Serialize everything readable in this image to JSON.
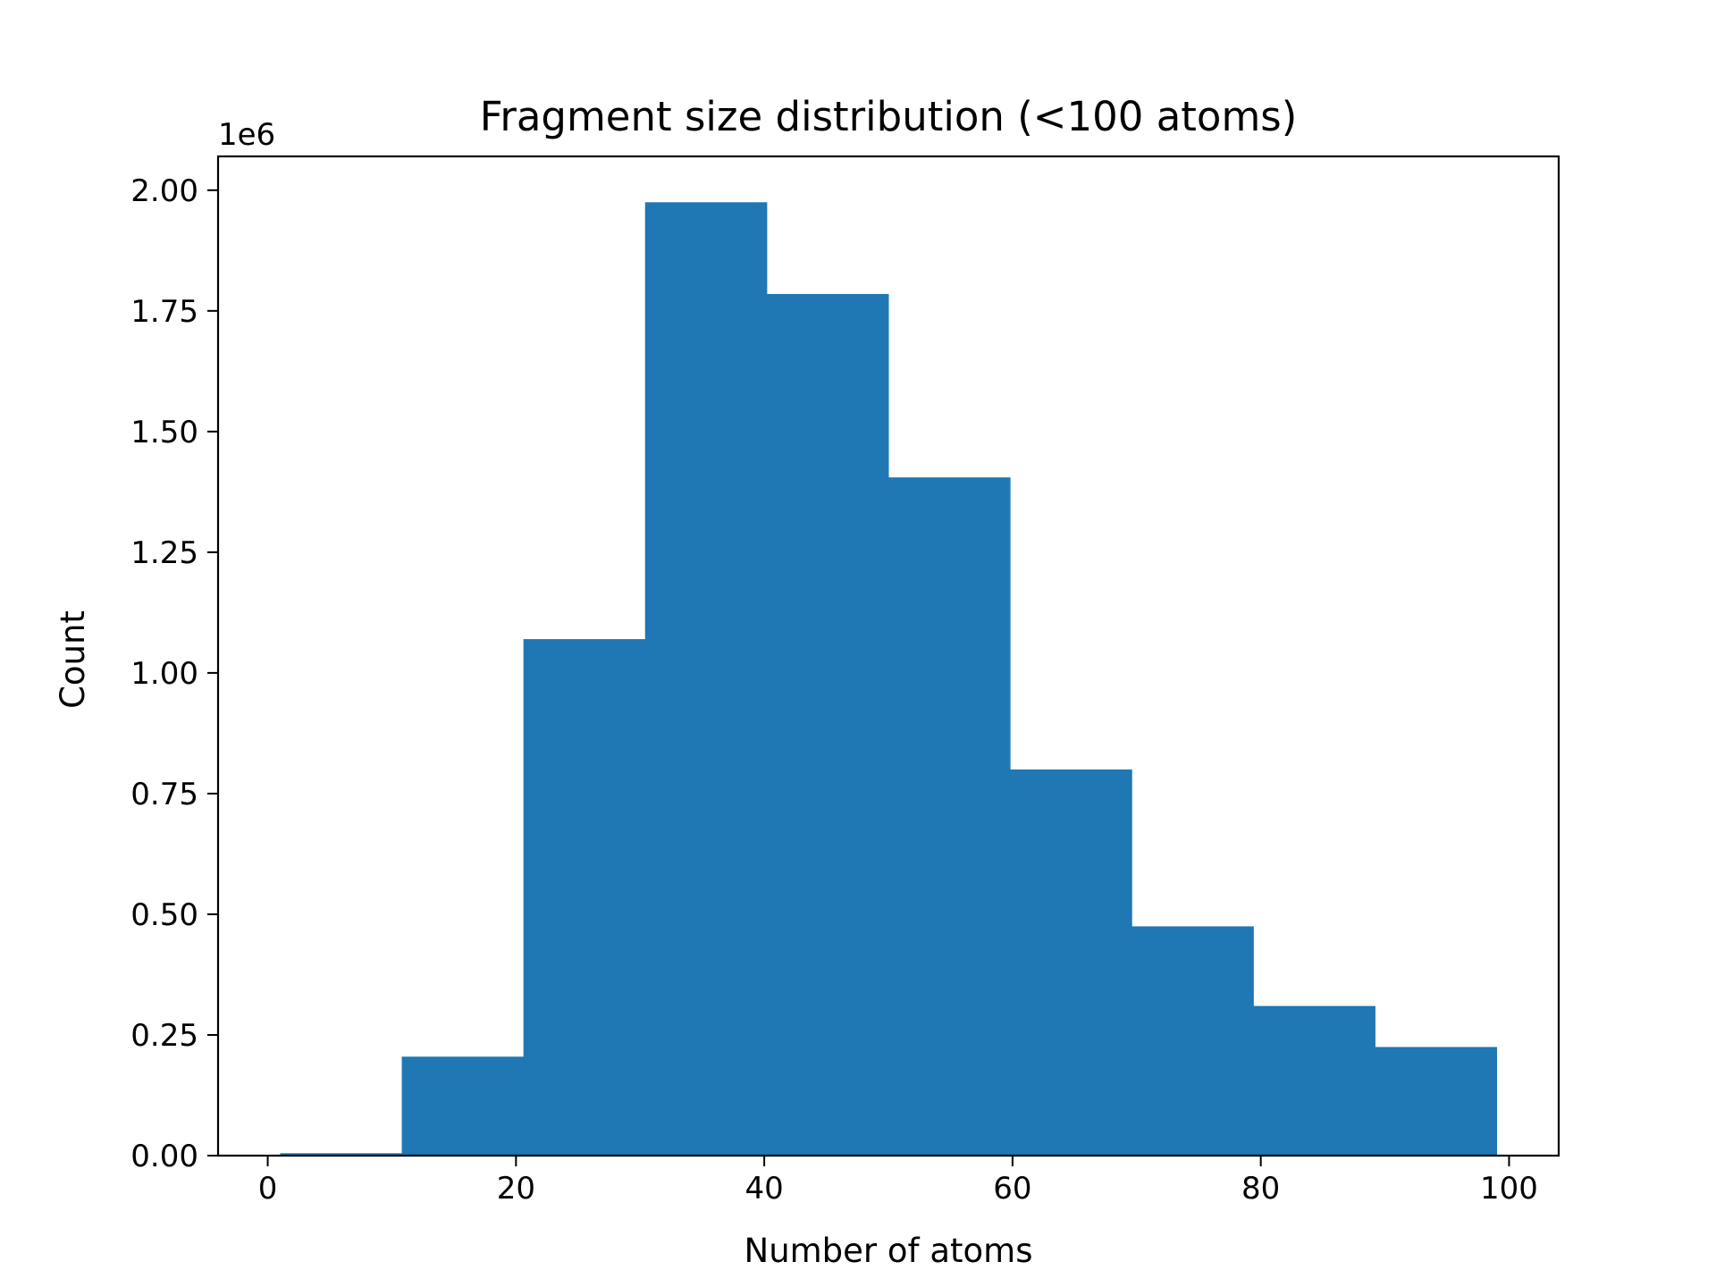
{
  "chart_data": {
    "type": "bar",
    "title": "Fragment size distribution (<100 atoms)",
    "xlabel": "Number of atoms",
    "ylabel": "Count",
    "y_offset_label": "1e6",
    "y_scale_factor": 1000000,
    "xlim": [
      -4,
      104
    ],
    "ylim": [
      0,
      2070000
    ],
    "xticks": [
      0,
      20,
      40,
      60,
      80,
      100
    ],
    "xtick_labels": [
      "0",
      "20",
      "40",
      "60",
      "80",
      "100"
    ],
    "yticks": [
      0,
      250000,
      500000,
      750000,
      1000000,
      1250000,
      1500000,
      1750000,
      2000000
    ],
    "ytick_labels": [
      "0.00",
      "0.25",
      "0.50",
      "0.75",
      "1.00",
      "1.25",
      "1.50",
      "1.75",
      "2.00"
    ],
    "bin_edges": [
      1,
      10.8,
      20.6,
      30.4,
      40.2,
      50,
      59.8,
      69.6,
      79.4,
      89.2,
      99
    ],
    "values": [
      5000,
      205000,
      1070000,
      1975000,
      1785000,
      1405000,
      800000,
      475000,
      310000,
      225000
    ],
    "bar_color": "#1f77b4",
    "grid": false,
    "legend": false
  }
}
